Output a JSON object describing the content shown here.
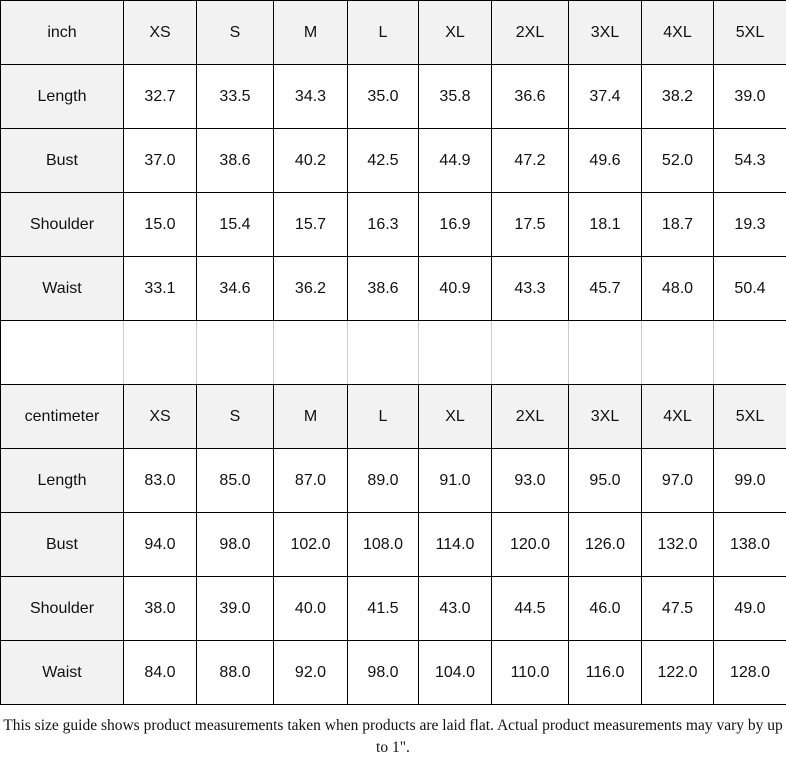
{
  "inch": {
    "unit": "inch",
    "sizes": [
      "XS",
      "S",
      "M",
      "L",
      "XL",
      "2XL",
      "3XL",
      "4XL",
      "5XL"
    ],
    "rows": [
      {
        "label": "Length",
        "values": [
          "32.7",
          "33.5",
          "34.3",
          "35.0",
          "35.8",
          "36.6",
          "37.4",
          "38.2",
          "39.0"
        ]
      },
      {
        "label": "Bust",
        "values": [
          "37.0",
          "38.6",
          "40.2",
          "42.5",
          "44.9",
          "47.2",
          "49.6",
          "52.0",
          "54.3"
        ]
      },
      {
        "label": "Shoulder",
        "values": [
          "15.0",
          "15.4",
          "15.7",
          "16.3",
          "16.9",
          "17.5",
          "18.1",
          "18.7",
          "19.3"
        ]
      },
      {
        "label": "Waist",
        "values": [
          "33.1",
          "34.6",
          "36.2",
          "38.6",
          "40.9",
          "43.3",
          "45.7",
          "48.0",
          "50.4"
        ]
      }
    ]
  },
  "cm": {
    "unit": "centimeter",
    "sizes": [
      "XS",
      "S",
      "M",
      "L",
      "XL",
      "2XL",
      "3XL",
      "4XL",
      "5XL"
    ],
    "rows": [
      {
        "label": "Length",
        "values": [
          "83.0",
          "85.0",
          "87.0",
          "89.0",
          "91.0",
          "93.0",
          "95.0",
          "97.0",
          "99.0"
        ]
      },
      {
        "label": "Bust",
        "values": [
          "94.0",
          "98.0",
          "102.0",
          "108.0",
          "114.0",
          "120.0",
          "126.0",
          "132.0",
          "138.0"
        ]
      },
      {
        "label": "Shoulder",
        "values": [
          "38.0",
          "39.0",
          "40.0",
          "41.5",
          "43.0",
          "44.5",
          "46.0",
          "47.5",
          "49.0"
        ]
      },
      {
        "label": "Waist",
        "values": [
          "84.0",
          "88.0",
          "92.0",
          "98.0",
          "104.0",
          "110.0",
          "116.0",
          "122.0",
          "128.0"
        ]
      }
    ]
  },
  "note": "This size guide shows product measurements taken when products are laid flat. Actual product measurements may vary by up to 1\"."
}
